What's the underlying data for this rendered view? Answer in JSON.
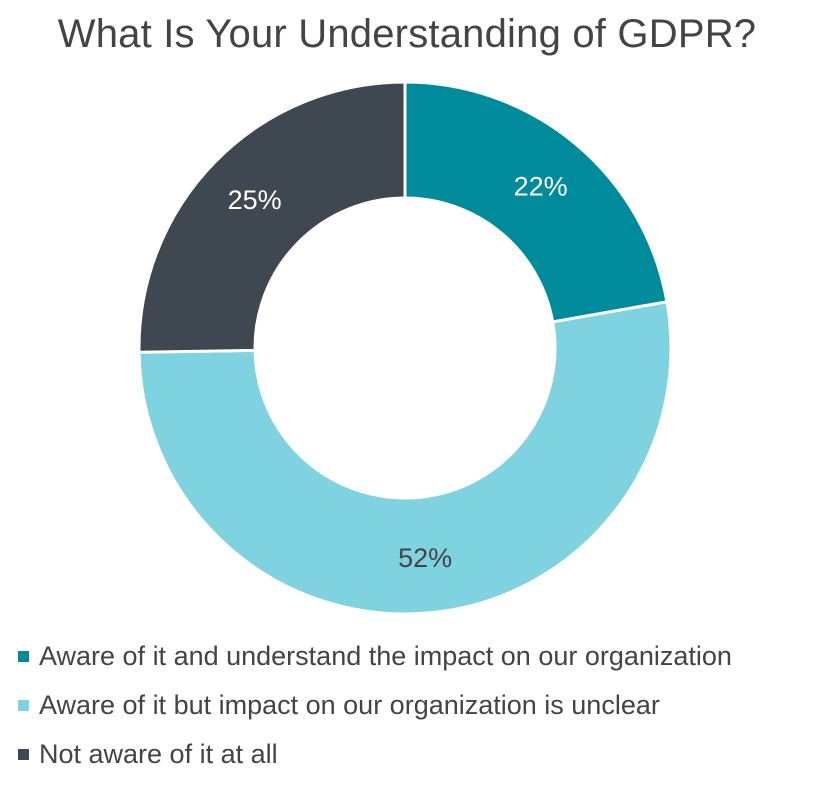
{
  "chart_data": {
    "type": "pie",
    "title": "What Is Your Understanding of GDPR?",
    "variant": "donut",
    "start_angle_deg": 0,
    "slices": [
      {
        "label": "Aware of it and understand the impact on our organization",
        "value": 22,
        "display": "22%",
        "color": "#008b9c",
        "label_color": "#ffffff"
      },
      {
        "label": "Aware of it but impact on our organization is unclear",
        "value": 52,
        "display": "52%",
        "color": "#7fd2df",
        "label_color": "#444444"
      },
      {
        "label": "Not aware of it at all",
        "value": 25,
        "display": "25%",
        "color": "#3f4851",
        "label_color": "#ffffff"
      }
    ],
    "legend_position": "bottom-left"
  }
}
